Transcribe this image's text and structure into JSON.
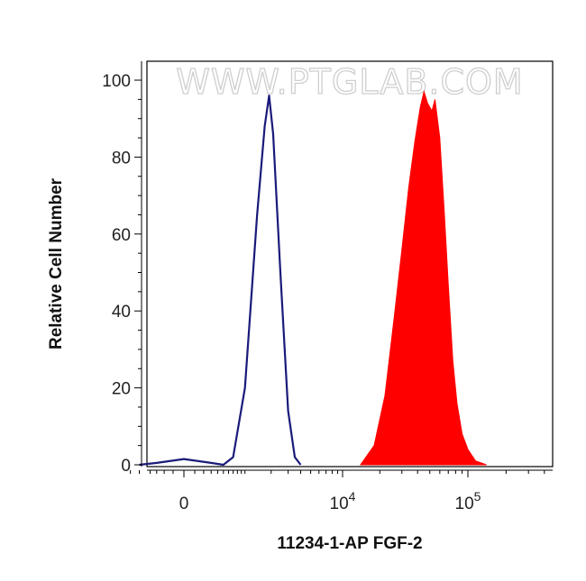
{
  "chart_data": {
    "type": "area",
    "title": "",
    "watermark": "WWW.PTGLAB.COM",
    "xlabel": "11234-1-AP FGF-2",
    "ylabel": "Relative Cell Number",
    "x_scale": "biexponential",
    "y_ticks": [
      "0",
      "20",
      "40",
      "60",
      "80",
      "100"
    ],
    "ylim": [
      0,
      100
    ],
    "x_ticks": [
      {
        "value": 0,
        "base": "0",
        "exp": ""
      },
      {
        "value": 10000,
        "base": "10",
        "exp": "4"
      },
      {
        "value": 100000,
        "base": "10",
        "exp": "5"
      }
    ],
    "grid": false,
    "legend": "none",
    "series": [
      {
        "style": "line",
        "color": "#1a1a7a",
        "points": [
          [
            -600,
            0
          ],
          [
            -300,
            0.5
          ],
          [
            0,
            1.5
          ],
          [
            300,
            0.5
          ],
          [
            500,
            0
          ],
          [
            700,
            2
          ],
          [
            1000,
            20
          ],
          [
            1400,
            65
          ],
          [
            1700,
            88
          ],
          [
            1900,
            96
          ],
          [
            2100,
            86
          ],
          [
            2500,
            50
          ],
          [
            3000,
            14
          ],
          [
            3500,
            2
          ],
          [
            4000,
            0
          ]
        ]
      },
      {
        "style": "fill",
        "color": "#ff0000",
        "points": [
          [
            14000,
            0
          ],
          [
            18000,
            5
          ],
          [
            22000,
            18
          ],
          [
            26000,
            38
          ],
          [
            30000,
            56
          ],
          [
            34000,
            72
          ],
          [
            38000,
            84
          ],
          [
            42000,
            93
          ],
          [
            45000,
            97
          ],
          [
            48000,
            94
          ],
          [
            52000,
            92
          ],
          [
            55000,
            95
          ],
          [
            60000,
            85
          ],
          [
            65000,
            66
          ],
          [
            70000,
            47
          ],
          [
            76000,
            27
          ],
          [
            82000,
            16
          ],
          [
            90000,
            8
          ],
          [
            100000,
            4
          ],
          [
            115000,
            1
          ],
          [
            140000,
            0
          ]
        ]
      }
    ]
  }
}
